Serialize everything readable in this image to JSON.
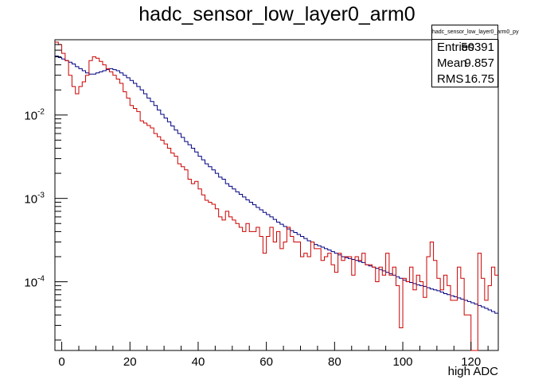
{
  "chart_data": {
    "type": "histogram",
    "title": "hadc_sensor_low_layer0_arm0",
    "xlabel": "high ADC",
    "ylabel": "",
    "xlim": [
      -2,
      128
    ],
    "ylim": [
      1.5e-05,
      0.08
    ],
    "yscale": "log",
    "x_ticks": [
      "0",
      "20",
      "40",
      "60",
      "80",
      "100",
      "120"
    ],
    "y_ticks": [
      {
        "base": "10",
        "exp": "-2",
        "value": 0.01
      },
      {
        "base": "10",
        "exp": "-3",
        "value": 0.001
      },
      {
        "base": "10",
        "exp": "-4",
        "value": 0.0001
      }
    ],
    "bin_width": 1,
    "x_start": -2,
    "series": [
      {
        "color": "#000080",
        "values": [
          0.051,
          0.049,
          0.047,
          0.045,
          0.043,
          0.041,
          0.038,
          0.036,
          0.034,
          0.032,
          0.031,
          0.031,
          0.032,
          0.033,
          0.034,
          0.035,
          0.036,
          0.035,
          0.034,
          0.032,
          0.03,
          0.028,
          0.026,
          0.024,
          0.022,
          0.02,
          0.018,
          0.016,
          0.0145,
          0.013,
          0.0115,
          0.0102,
          0.0092,
          0.0083,
          0.0074,
          0.0066,
          0.006,
          0.0054,
          0.0048,
          0.0044,
          0.004,
          0.0036,
          0.0032,
          0.0029,
          0.0026,
          0.0024,
          0.0022,
          0.002,
          0.0018,
          0.0017,
          0.0015,
          0.0014,
          0.0013,
          0.0012,
          0.00112,
          0.00104,
          0.00096,
          0.0009,
          0.00084,
          0.00078,
          0.00073,
          0.00068,
          0.00064,
          0.0006,
          0.00056,
          0.00052,
          0.00049,
          0.00046,
          0.00043,
          0.00041,
          0.00039,
          0.00037,
          0.00035,
          0.00033,
          0.00031,
          0.0003,
          0.00028,
          0.00027,
          0.00026,
          0.00025,
          0.00024,
          0.00023,
          0.00022,
          0.00021,
          0.0002,
          0.000195,
          0.00019,
          0.000185,
          0.00018,
          0.000175,
          0.00017,
          0.00016,
          0.000155,
          0.00015,
          0.000145,
          0.00014,
          0.000135,
          0.00013,
          0.000125,
          0.00012,
          0.000115,
          0.00011,
          0.000105,
          0.0001,
          9.8e-05,
          9.5e-05,
          9.2e-05,
          9e-05,
          8.8e-05,
          8.5e-05,
          8.2e-05,
          8e-05,
          7.8e-05,
          7.5e-05,
          7.2e-05,
          7e-05,
          6.8e-05,
          6.6e-05,
          6.4e-05,
          6.2e-05,
          6e-05,
          5.8e-05,
          5.6e-05,
          5.4e-05,
          5.2e-05,
          5e-05,
          4.8e-05,
          4.6e-05,
          4.4e-05,
          4.2e-05
        ]
      },
      {
        "color": "#cc0000",
        "values": [
          0.075,
          0.07,
          0.055,
          0.045,
          0.03,
          0.022,
          0.018,
          0.022,
          0.025,
          0.03,
          0.045,
          0.05,
          0.048,
          0.044,
          0.04,
          0.036,
          0.033,
          0.03,
          0.027,
          0.024,
          0.019,
          0.016,
          0.013,
          0.012,
          0.011,
          0.0085,
          0.008,
          0.0075,
          0.007,
          0.006,
          0.0055,
          0.005,
          0.0045,
          0.004,
          0.0035,
          0.0032,
          0.0026,
          0.0024,
          0.0022,
          0.0017,
          0.0015,
          0.0016,
          0.0013,
          0.0011,
          0.00095,
          0.0009,
          0.00085,
          0.00075,
          0.0006,
          0.00055,
          0.0007,
          0.0006,
          0.00055,
          0.0005,
          0.00045,
          0.0004,
          0.0005,
          0.0004,
          0.0004,
          0.00045,
          0.00035,
          0.00022,
          0.00035,
          0.00045,
          0.0003,
          0.0004,
          0.00025,
          0.0003,
          0.00045,
          0.00035,
          0.0003,
          0.0003,
          0.0002,
          0.00022,
          0.0002,
          0.0003,
          0.00025,
          0.00025,
          0.00018,
          0.0002,
          0.00022,
          0.00016,
          0.00013,
          0.00022,
          0.00018,
          0.0002,
          0.0002,
          0.00012,
          0.0002,
          0.00018,
          0.00022,
          0.00016,
          0.00016,
          0.00015,
          0.0001,
          0.00015,
          0.00012,
          0.00022,
          0.00012,
          0.00015,
          9e-05,
          2.8e-05,
          0.00011,
          0.0001,
          0.00015,
          8e-05,
          0.00012,
          0.0001,
          6.5e-05,
          0.0002,
          0.0003,
          0.00018,
          0.00011,
          8e-05,
          0.00012,
          9e-05,
          6e-05,
          6e-05,
          0.00015,
          0.00011,
          4e-05,
          4e-05,
          1.5e-05,
          1.5e-05,
          0.00022,
          0.00011,
          6e-05,
          9e-05,
          0.00015,
          0.00012
        ]
      }
    ]
  },
  "stats": {
    "title": "hadc_sensor_low_layer0_arm0_py",
    "rows": [
      {
        "label": "Entries",
        "value": "50391"
      },
      {
        "label": "Mean",
        "value": "9.857"
      },
      {
        "label": "RMS",
        "value": "16.75"
      }
    ]
  }
}
